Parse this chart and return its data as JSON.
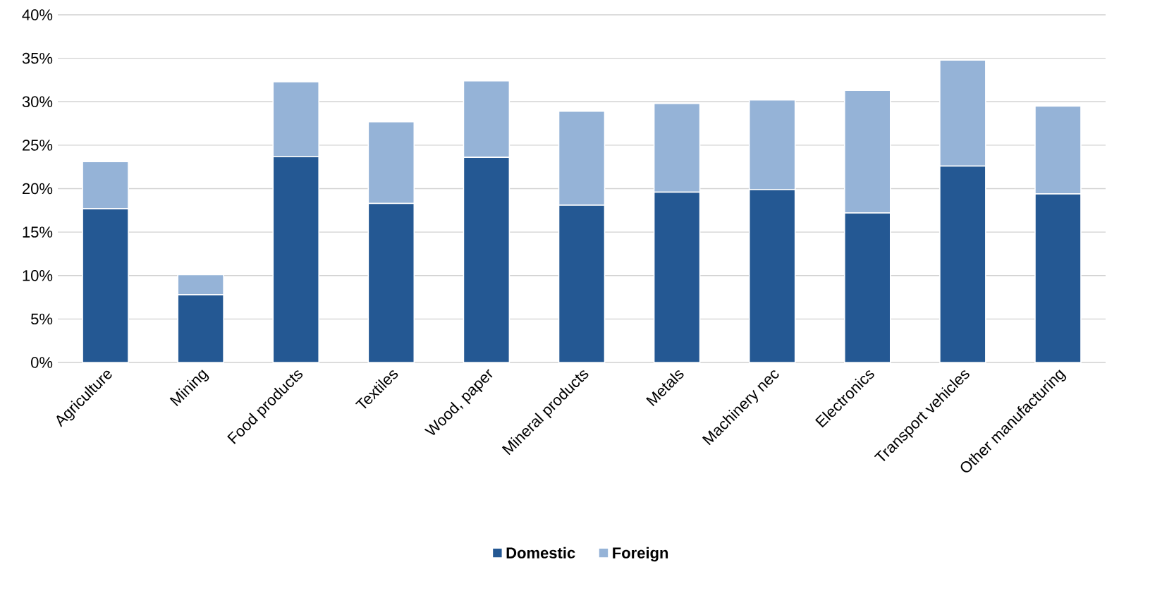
{
  "chart_data": {
    "type": "bar",
    "stacked": true,
    "categories": [
      "Agriculture",
      "Mining",
      "Food products",
      "Textiles",
      "Wood, paper",
      "Mineral products",
      "Metals",
      "Machinery nec",
      "Electronics",
      "Transport vehicles",
      "Other manufacturing"
    ],
    "series": [
      {
        "name": "Domestic",
        "color": "#245893",
        "values": [
          17.7,
          7.8,
          23.7,
          18.3,
          23.6,
          18.1,
          19.6,
          19.9,
          17.2,
          22.6,
          19.4
        ]
      },
      {
        "name": "Foreign",
        "color": "#95b3d7",
        "values": [
          5.4,
          2.3,
          8.6,
          9.4,
          8.8,
          10.8,
          10.2,
          10.3,
          14.1,
          12.2,
          10.1
        ]
      }
    ],
    "ylim": [
      0,
      40
    ],
    "yticks": [
      {
        "value": 0,
        "label": "0%"
      },
      {
        "value": 5,
        "label": "5%"
      },
      {
        "value": 10,
        "label": "10%"
      },
      {
        "value": 15,
        "label": "15%"
      },
      {
        "value": 20,
        "label": "20%"
      },
      {
        "value": 25,
        "label": "25%"
      },
      {
        "value": 30,
        "label": "30%"
      },
      {
        "value": 35,
        "label": "35%"
      },
      {
        "value": 40,
        "label": "40%"
      }
    ],
    "grid": "y",
    "legend": "bottom"
  }
}
